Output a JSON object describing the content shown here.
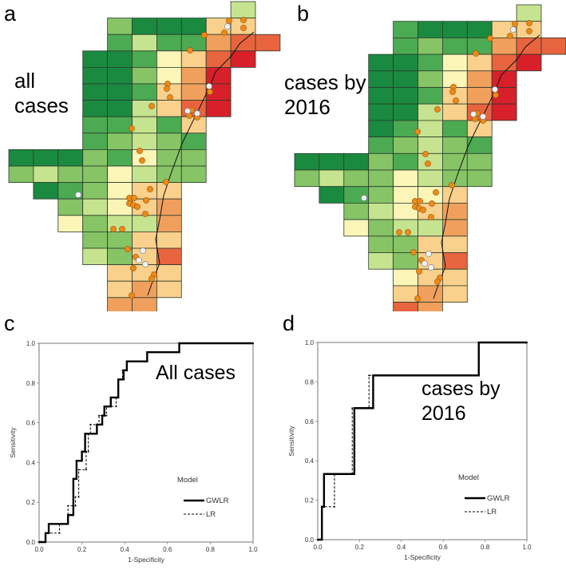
{
  "palette": [
    "#1a8a40",
    "#4caa52",
    "#86c466",
    "#c6e38f",
    "#fbf6b8",
    "#f9d08c",
    "#f0a05c",
    "#e8643f",
    "#d8202a"
  ],
  "maps": [
    {
      "letter": "a",
      "caption_lines": [
        "all",
        "cases"
      ],
      "grid": [
        ".........3.",
        "....200055.",
        "....1311677",
        "...0014578.",
        "...002468..",
        "...001568..",
        "...003578..",
        "...11315...",
        "...12321...",
        "00021422...",
        "23224322...",
        ".012455....",
        "..23456....",
        "..42336....",
        "...2255....",
        "...3257....",
        "....555....",
        "....565....",
        "....66....."
      ]
    },
    {
      "letter": "b",
      "caption_lines": [
        "cases by",
        "2016"
      ],
      "grid": [
        ".........3.",
        "....100055.",
        "....1211677",
        "...0014578.",
        "...002468..",
        "...001568..",
        "...003578..",
        "...01315...",
        "...12321...",
        "00021322...",
        "23224322...",
        ".012445....",
        "..23456....",
        "..42336....",
        "...2255....",
        "...3257....",
        "....455....",
        "....565....",
        "....76....."
      ]
    }
  ],
  "chart_data": [
    {
      "panel_letter": "c",
      "type": "line",
      "annotation": "All cases",
      "xlabel": "1-Specificity",
      "ylabel": "Sensitivity",
      "xlim": [
        0,
        1
      ],
      "ylim": [
        0,
        1
      ],
      "xticks": [
        "0.0",
        "0.2",
        "0.4",
        "0.6",
        "0.8",
        "1.0"
      ],
      "yticks": [
        "0.0",
        "0.2",
        "0.4",
        "0.6",
        "0.8",
        "1.0"
      ],
      "legend_title": "Model",
      "legend_position": "bottom-right",
      "series": [
        {
          "name": "GWLR",
          "style": "solid",
          "x": [
            0,
            0.03,
            0.03,
            0.045,
            0.045,
            0.135,
            0.135,
            0.16,
            0.16,
            0.175,
            0.175,
            0.2,
            0.2,
            0.215,
            0.215,
            0.27,
            0.27,
            0.295,
            0.295,
            0.305,
            0.305,
            0.335,
            0.335,
            0.37,
            0.37,
            0.395,
            0.395,
            0.41,
            0.41,
            0.505,
            0.505,
            0.655,
            0.655,
            1
          ],
          "y": [
            0,
            0,
            0.045,
            0.045,
            0.091,
            0.091,
            0.136,
            0.136,
            0.318,
            0.318,
            0.409,
            0.409,
            0.455,
            0.455,
            0.545,
            0.545,
            0.591,
            0.591,
            0.636,
            0.636,
            0.682,
            0.682,
            0.727,
            0.727,
            0.818,
            0.818,
            0.864,
            0.864,
            0.909,
            0.909,
            0.955,
            0.955,
            1,
            1
          ]
        },
        {
          "name": "LR",
          "style": "dashed",
          "x": [
            0,
            0.03,
            0.03,
            0.095,
            0.095,
            0.135,
            0.135,
            0.17,
            0.17,
            0.185,
            0.185,
            0.22,
            0.22,
            0.23,
            0.23,
            0.24,
            0.24,
            0.28,
            0.28,
            0.315,
            0.315,
            0.36,
            0.36,
            0.37,
            0.37,
            0.39,
            0.39,
            0.41,
            0.41,
            0.505,
            0.505,
            0.655,
            0.655,
            1
          ],
          "y": [
            0,
            0,
            0.045,
            0.045,
            0.091,
            0.091,
            0.182,
            0.182,
            0.227,
            0.227,
            0.364,
            0.364,
            0.455,
            0.455,
            0.545,
            0.545,
            0.591,
            0.591,
            0.636,
            0.636,
            0.682,
            0.682,
            0.727,
            0.727,
            0.818,
            0.818,
            0.864,
            0.864,
            0.909,
            0.909,
            0.955,
            0.955,
            1,
            1
          ]
        }
      ]
    },
    {
      "panel_letter": "d",
      "type": "line",
      "annotation": "cases by 2016",
      "annotation_lines": [
        "cases by",
        "2016"
      ],
      "xlabel": "1-Specificity",
      "ylabel": "Sensitivity",
      "xlim": [
        0,
        1
      ],
      "ylim": [
        0,
        1
      ],
      "xticks": [
        "0.0",
        "0.2",
        "0.4",
        "0.6",
        "0.8",
        "1.0"
      ],
      "yticks": [
        "0.0",
        "0.2",
        "0.4",
        "0.6",
        "0.8",
        "1.0"
      ],
      "legend_title": "Model",
      "legend_position": "bottom-right",
      "series": [
        {
          "name": "GWLR",
          "style": "solid",
          "x": [
            0,
            0.02,
            0.02,
            0.03,
            0.03,
            0.175,
            0.175,
            0.265,
            0.265,
            0.77,
            0.77,
            1
          ],
          "y": [
            0,
            0,
            0.167,
            0.167,
            0.333,
            0.333,
            0.667,
            0.667,
            0.833,
            0.833,
            1,
            1
          ]
        },
        {
          "name": "LR",
          "style": "dashed",
          "x": [
            0,
            0.02,
            0.02,
            0.08,
            0.08,
            0.165,
            0.165,
            0.245,
            0.245,
            0.77,
            0.77,
            1
          ],
          "y": [
            0,
            0,
            0.167,
            0.167,
            0.333,
            0.333,
            0.667,
            0.667,
            0.833,
            0.833,
            1,
            1
          ]
        }
      ]
    }
  ]
}
